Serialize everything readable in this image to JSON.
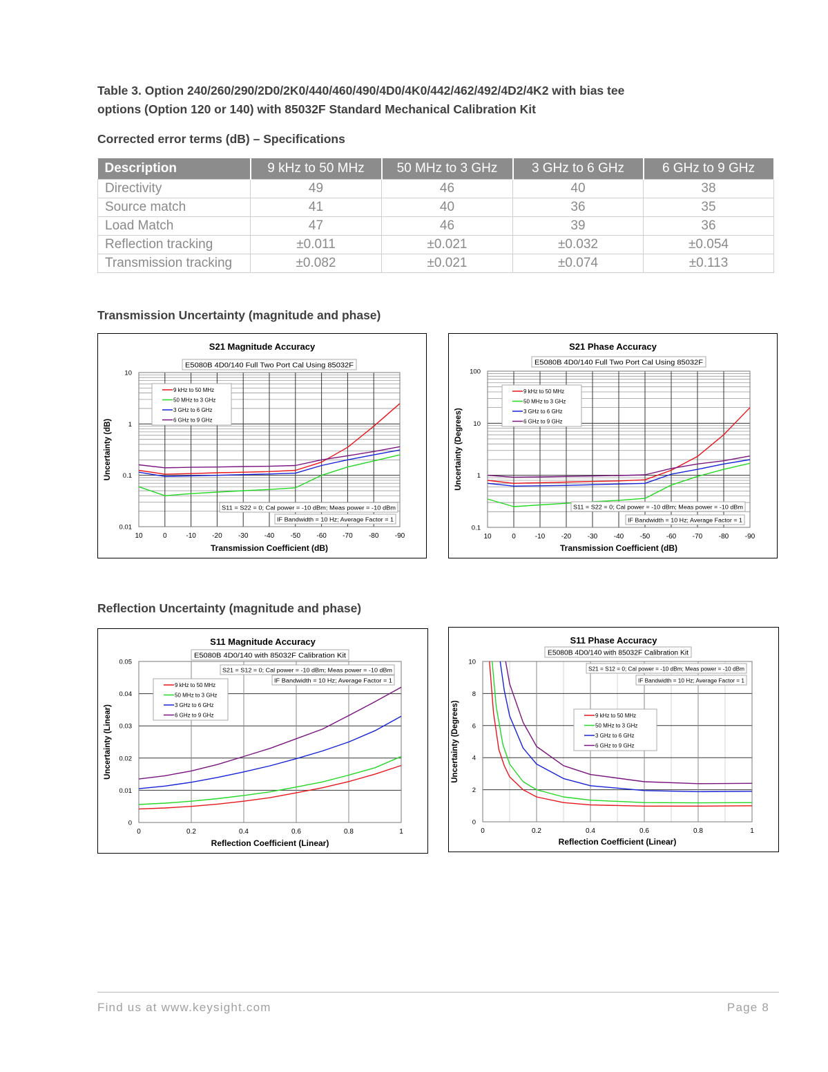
{
  "heading": {
    "line1": "Table 3. Option 240/260/290/2D0/2K0/440/460/490/4D0/4K0/442/462/492/4D2/4K2 with bias tee",
    "line2": "options (Option 120 or 140) with 85032F Standard Mechanical Calibration Kit"
  },
  "subheading": "Corrected error terms (dB) – Specifications",
  "table": {
    "headers": [
      "Description",
      "9 kHz to 50 MHz",
      "50 MHz to 3 GHz",
      "3 GHz to 6 GHz",
      "6 GHz to 9 GHz"
    ],
    "rows": [
      [
        "Directivity",
        "49",
        "46",
        "40",
        "38"
      ],
      [
        "Source match",
        "41",
        "40",
        "36",
        "35"
      ],
      [
        "Load Match",
        "47",
        "46",
        "39",
        "36"
      ],
      [
        "Reflection tracking",
        "±0.011",
        "±0.021",
        "±0.032",
        "±0.054"
      ],
      [
        "Transmission tracking",
        "±0.082",
        "±0.021",
        "±0.074",
        "±0.113"
      ]
    ]
  },
  "sections": {
    "transmission": "Transmission Uncertainty (magnitude and phase)",
    "reflection": "Reflection Uncertainty (magnitude and phase)"
  },
  "footer": {
    "left": "Find us at www.keysight.com",
    "right": "Page 8"
  },
  "chart_data": [
    {
      "type": "line",
      "title": "S21 Magnitude Accuracy",
      "subtitle": "E5080B 4D0/140 Full Two Port Cal Using 85032F",
      "notes": [
        "S11 = S22 = 0; Cal power = -10 dBm; Meas power = -10 dBm",
        "IF Bandwidth = 10 Hz; Average Factor = 1"
      ],
      "xlabel": "Transmission Coefficient (dB)",
      "ylabel": "Uncertainty (dB)",
      "xscale": "linear",
      "xlim": [
        10,
        -90
      ],
      "xticks": [
        10,
        0,
        -10,
        -20,
        -30,
        -40,
        -50,
        -60,
        -70,
        -80,
        -90
      ],
      "yscale": "log",
      "ylim": [
        0.01,
        10
      ],
      "yticks": [
        0.01,
        0.1,
        1,
        10
      ],
      "ytick_labels": [
        "0.01",
        "0.1",
        "1",
        "10"
      ],
      "grid": true,
      "legend_position": "top-left",
      "series": [
        {
          "name": "9 kHz to 50 MHz",
          "color": "#e8141b",
          "points": [
            [
              10,
              0.125
            ],
            [
              0,
              0.105
            ],
            [
              -10,
              0.108
            ],
            [
              -20,
              0.112
            ],
            [
              -30,
              0.115
            ],
            [
              -40,
              0.118
            ],
            [
              -50,
              0.125
            ],
            [
              -60,
              0.18
            ],
            [
              -70,
              0.35
            ],
            [
              -80,
              0.9
            ],
            [
              -90,
              2.5
            ]
          ]
        },
        {
          "name": "50 MHz to 3 GHz",
          "color": "#22d822",
          "points": [
            [
              10,
              0.06
            ],
            [
              0,
              0.04
            ],
            [
              -10,
              0.044
            ],
            [
              -20,
              0.047
            ],
            [
              -30,
              0.05
            ],
            [
              -40,
              0.053
            ],
            [
              -50,
              0.057
            ],
            [
              -60,
              0.1
            ],
            [
              -70,
              0.145
            ],
            [
              -80,
              0.19
            ],
            [
              -90,
              0.25
            ]
          ]
        },
        {
          "name": "3 GHz to 6 GHz",
          "color": "#1522d8",
          "points": [
            [
              10,
              0.115
            ],
            [
              0,
              0.095
            ],
            [
              -10,
              0.097
            ],
            [
              -20,
              0.1
            ],
            [
              -30,
              0.103
            ],
            [
              -40,
              0.106
            ],
            [
              -50,
              0.11
            ],
            [
              -60,
              0.155
            ],
            [
              -70,
              0.2
            ],
            [
              -80,
              0.25
            ],
            [
              -90,
              0.31
            ]
          ]
        },
        {
          "name": "6 GHz to 9 GHz",
          "color": "#7a137f",
          "points": [
            [
              10,
              0.16
            ],
            [
              0,
              0.14
            ],
            [
              -10,
              0.143
            ],
            [
              -20,
              0.145
            ],
            [
              -30,
              0.148
            ],
            [
              -40,
              0.15
            ],
            [
              -50,
              0.155
            ],
            [
              -60,
              0.2
            ],
            [
              -70,
              0.24
            ],
            [
              -80,
              0.29
            ],
            [
              -90,
              0.36
            ]
          ]
        }
      ]
    },
    {
      "type": "line",
      "title": "S21 Phase Accuracy",
      "subtitle": "E5080B 4D0/140 Full Two Port Cal Using 85032F",
      "notes": [
        "S11 = S22 = 0; Cal power = -10 dBm; Meas power = -10 dBm",
        "IF Bandwidth = 10 Hz; Average Factor = 1"
      ],
      "xlabel": "Transmission Coefficient (dB)",
      "ylabel": "Uncertainty (Degrees)",
      "xscale": "linear",
      "xlim": [
        10,
        -90
      ],
      "xticks": [
        10,
        0,
        -10,
        -20,
        -30,
        -40,
        -50,
        -60,
        -70,
        -80,
        -90
      ],
      "yscale": "log",
      "ylim": [
        0.1,
        100
      ],
      "yticks": [
        0.1,
        1,
        10,
        100
      ],
      "ytick_labels": [
        "0.1",
        "1",
        "10",
        "100"
      ],
      "grid": true,
      "legend_position": "top-left",
      "series": [
        {
          "name": "9 kHz to 50 MHz",
          "color": "#e8141b",
          "points": [
            [
              10,
              0.8
            ],
            [
              0,
              0.7
            ],
            [
              -10,
              0.72
            ],
            [
              -20,
              0.74
            ],
            [
              -30,
              0.76
            ],
            [
              -40,
              0.78
            ],
            [
              -50,
              0.82
            ],
            [
              -60,
              1.25
            ],
            [
              -70,
              2.3
            ],
            [
              -80,
              6
            ],
            [
              -90,
              20
            ]
          ]
        },
        {
          "name": "50 MHz to 3 GHz",
          "color": "#22d822",
          "points": [
            [
              10,
              0.35
            ],
            [
              0,
              0.25
            ],
            [
              -10,
              0.27
            ],
            [
              -20,
              0.29
            ],
            [
              -30,
              0.31
            ],
            [
              -40,
              0.33
            ],
            [
              -50,
              0.36
            ],
            [
              -60,
              0.65
            ],
            [
              -70,
              0.95
            ],
            [
              -80,
              1.3
            ],
            [
              -90,
              1.7
            ]
          ]
        },
        {
          "name": "3 GHz to 6 GHz",
          "color": "#1522d8",
          "points": [
            [
              10,
              0.7
            ],
            [
              0,
              0.62
            ],
            [
              -10,
              0.63
            ],
            [
              -20,
              0.64
            ],
            [
              -30,
              0.66
            ],
            [
              -40,
              0.68
            ],
            [
              -50,
              0.7
            ],
            [
              -60,
              1.05
            ],
            [
              -70,
              1.3
            ],
            [
              -80,
              1.65
            ],
            [
              -90,
              2.0
            ]
          ]
        },
        {
          "name": "6 GHz to 9 GHz",
          "color": "#7a137f",
          "points": [
            [
              10,
              1.0
            ],
            [
              0,
              0.92
            ],
            [
              -10,
              0.93
            ],
            [
              -20,
              0.95
            ],
            [
              -30,
              0.97
            ],
            [
              -40,
              0.99
            ],
            [
              -50,
              1.02
            ],
            [
              -60,
              1.35
            ],
            [
              -70,
              1.65
            ],
            [
              -80,
              1.9
            ],
            [
              -90,
              2.35
            ]
          ]
        }
      ]
    },
    {
      "type": "line",
      "title": "S11 Magnitude Accuracy",
      "subtitle": "E5080B 4D0/140 with 85032F Calibration Kit",
      "notes": [
        "S21 = S12 = 0; Cal power = -10 dBm; Meas power = -10 dBm",
        "IF Bandwidth = 10 Hz; Average Factor = 1"
      ],
      "xlabel": "Reflection Coefficient (Linear)",
      "ylabel": "Uncertainty (Linear)",
      "xscale": "linear",
      "xlim": [
        0,
        1
      ],
      "xticks": [
        0,
        0.2,
        0.4,
        0.6,
        0.8,
        1
      ],
      "yscale": "linear",
      "ylim": [
        0,
        0.05
      ],
      "yticks": [
        0,
        0.01,
        0.02,
        0.03,
        0.04,
        0.05
      ],
      "ytick_labels": [
        "0",
        "0.01",
        "0.02",
        "0.03",
        "0.04",
        "0.05"
      ],
      "grid": true,
      "legend_position": "top-left",
      "series": [
        {
          "name": "9 kHz to 50 MHz",
          "color": "#e8141b",
          "points": [
            [
              0,
              0.0042
            ],
            [
              0.1,
              0.0045
            ],
            [
              0.2,
              0.005
            ],
            [
              0.3,
              0.0057
            ],
            [
              0.4,
              0.0066
            ],
            [
              0.5,
              0.0077
            ],
            [
              0.6,
              0.0092
            ],
            [
              0.7,
              0.0108
            ],
            [
              0.8,
              0.0127
            ],
            [
              0.9,
              0.015
            ],
            [
              1,
              0.0177
            ]
          ]
        },
        {
          "name": "50 MHz to 3 GHz",
          "color": "#22d822",
          "points": [
            [
              0,
              0.0056
            ],
            [
              0.1,
              0.006
            ],
            [
              0.2,
              0.0066
            ],
            [
              0.3,
              0.0074
            ],
            [
              0.4,
              0.0084
            ],
            [
              0.5,
              0.0095
            ],
            [
              0.6,
              0.011
            ],
            [
              0.7,
              0.0126
            ],
            [
              0.8,
              0.0147
            ],
            [
              0.9,
              0.017
            ],
            [
              1,
              0.0205
            ]
          ]
        },
        {
          "name": "3 GHz to 6 GHz",
          "color": "#1522d8",
          "points": [
            [
              0,
              0.0105
            ],
            [
              0.1,
              0.0113
            ],
            [
              0.2,
              0.0125
            ],
            [
              0.3,
              0.014
            ],
            [
              0.4,
              0.0157
            ],
            [
              0.5,
              0.0176
            ],
            [
              0.6,
              0.0198
            ],
            [
              0.7,
              0.0222
            ],
            [
              0.8,
              0.025
            ],
            [
              0.9,
              0.0285
            ],
            [
              1,
              0.033
            ]
          ]
        },
        {
          "name": "6 GHz to 9 GHz",
          "color": "#7a137f",
          "points": [
            [
              0,
              0.0135
            ],
            [
              0.1,
              0.0145
            ],
            [
              0.2,
              0.016
            ],
            [
              0.3,
              0.018
            ],
            [
              0.4,
              0.0205
            ],
            [
              0.5,
              0.023
            ],
            [
              0.6,
              0.026
            ],
            [
              0.7,
              0.029
            ],
            [
              0.8,
              0.0332
            ],
            [
              0.9,
              0.0375
            ],
            [
              1,
              0.042
            ]
          ]
        }
      ]
    },
    {
      "type": "line",
      "title": "S11 Phase Accuracy",
      "subtitle": "E5080B 4D0/140 with 85032F Calibration Kit",
      "notes": [
        "S21 = S12 = 0; Cal power = -10 dBm; Meas power = -10 dBm",
        "IF Bandwidth = 10 Hz; Average Factor = 1"
      ],
      "xlabel": "Reflection Coefficient (Linear)",
      "ylabel": "Uncertainty (Degrees)",
      "xscale": "linear",
      "xlim": [
        0,
        1
      ],
      "xticks": [
        0,
        0.2,
        0.4,
        0.6,
        0.8,
        1
      ],
      "yscale": "linear",
      "ylim": [
        0,
        10
      ],
      "yticks": [
        0,
        2,
        4,
        6,
        8,
        10
      ],
      "ytick_labels": [
        "0",
        "2",
        "4",
        "6",
        "8",
        "10"
      ],
      "grid": true,
      "legend_position": "center",
      "series": [
        {
          "name": "9 kHz to 50 MHz",
          "color": "#e8141b",
          "points": [
            [
              0.025,
              10
            ],
            [
              0.04,
              6.8
            ],
            [
              0.06,
              4.5
            ],
            [
              0.08,
              3.5
            ],
            [
              0.1,
              2.8
            ],
            [
              0.15,
              2.0
            ],
            [
              0.2,
              1.55
            ],
            [
              0.3,
              1.2
            ],
            [
              0.4,
              1.05
            ],
            [
              0.6,
              0.98
            ],
            [
              0.8,
              0.98
            ],
            [
              1,
              1.0
            ]
          ]
        },
        {
          "name": "50 MHz to 3 GHz",
          "color": "#22d822",
          "points": [
            [
              0.035,
              10
            ],
            [
              0.05,
              7.2
            ],
            [
              0.075,
              4.8
            ],
            [
              0.1,
              3.6
            ],
            [
              0.15,
              2.5
            ],
            [
              0.2,
              2.0
            ],
            [
              0.3,
              1.55
            ],
            [
              0.4,
              1.35
            ],
            [
              0.6,
              1.2
            ],
            [
              0.8,
              1.18
            ],
            [
              1,
              1.2
            ]
          ]
        },
        {
          "name": "3 GHz to 6 GHz",
          "color": "#1522d8",
          "points": [
            [
              0.065,
              10
            ],
            [
              0.08,
              8.2
            ],
            [
              0.1,
              6.6
            ],
            [
              0.15,
              4.6
            ],
            [
              0.2,
              3.6
            ],
            [
              0.3,
              2.7
            ],
            [
              0.4,
              2.25
            ],
            [
              0.6,
              1.95
            ],
            [
              0.8,
              1.88
            ],
            [
              1,
              1.9
            ]
          ]
        },
        {
          "name": "6 GHz to 9 GHz",
          "color": "#7a137f",
          "points": [
            [
              0.085,
              10
            ],
            [
              0.1,
              8.6
            ],
            [
              0.15,
              6.2
            ],
            [
              0.2,
              4.7
            ],
            [
              0.3,
              3.5
            ],
            [
              0.4,
              2.95
            ],
            [
              0.6,
              2.5
            ],
            [
              0.8,
              2.38
            ],
            [
              1,
              2.4
            ]
          ]
        }
      ]
    }
  ]
}
